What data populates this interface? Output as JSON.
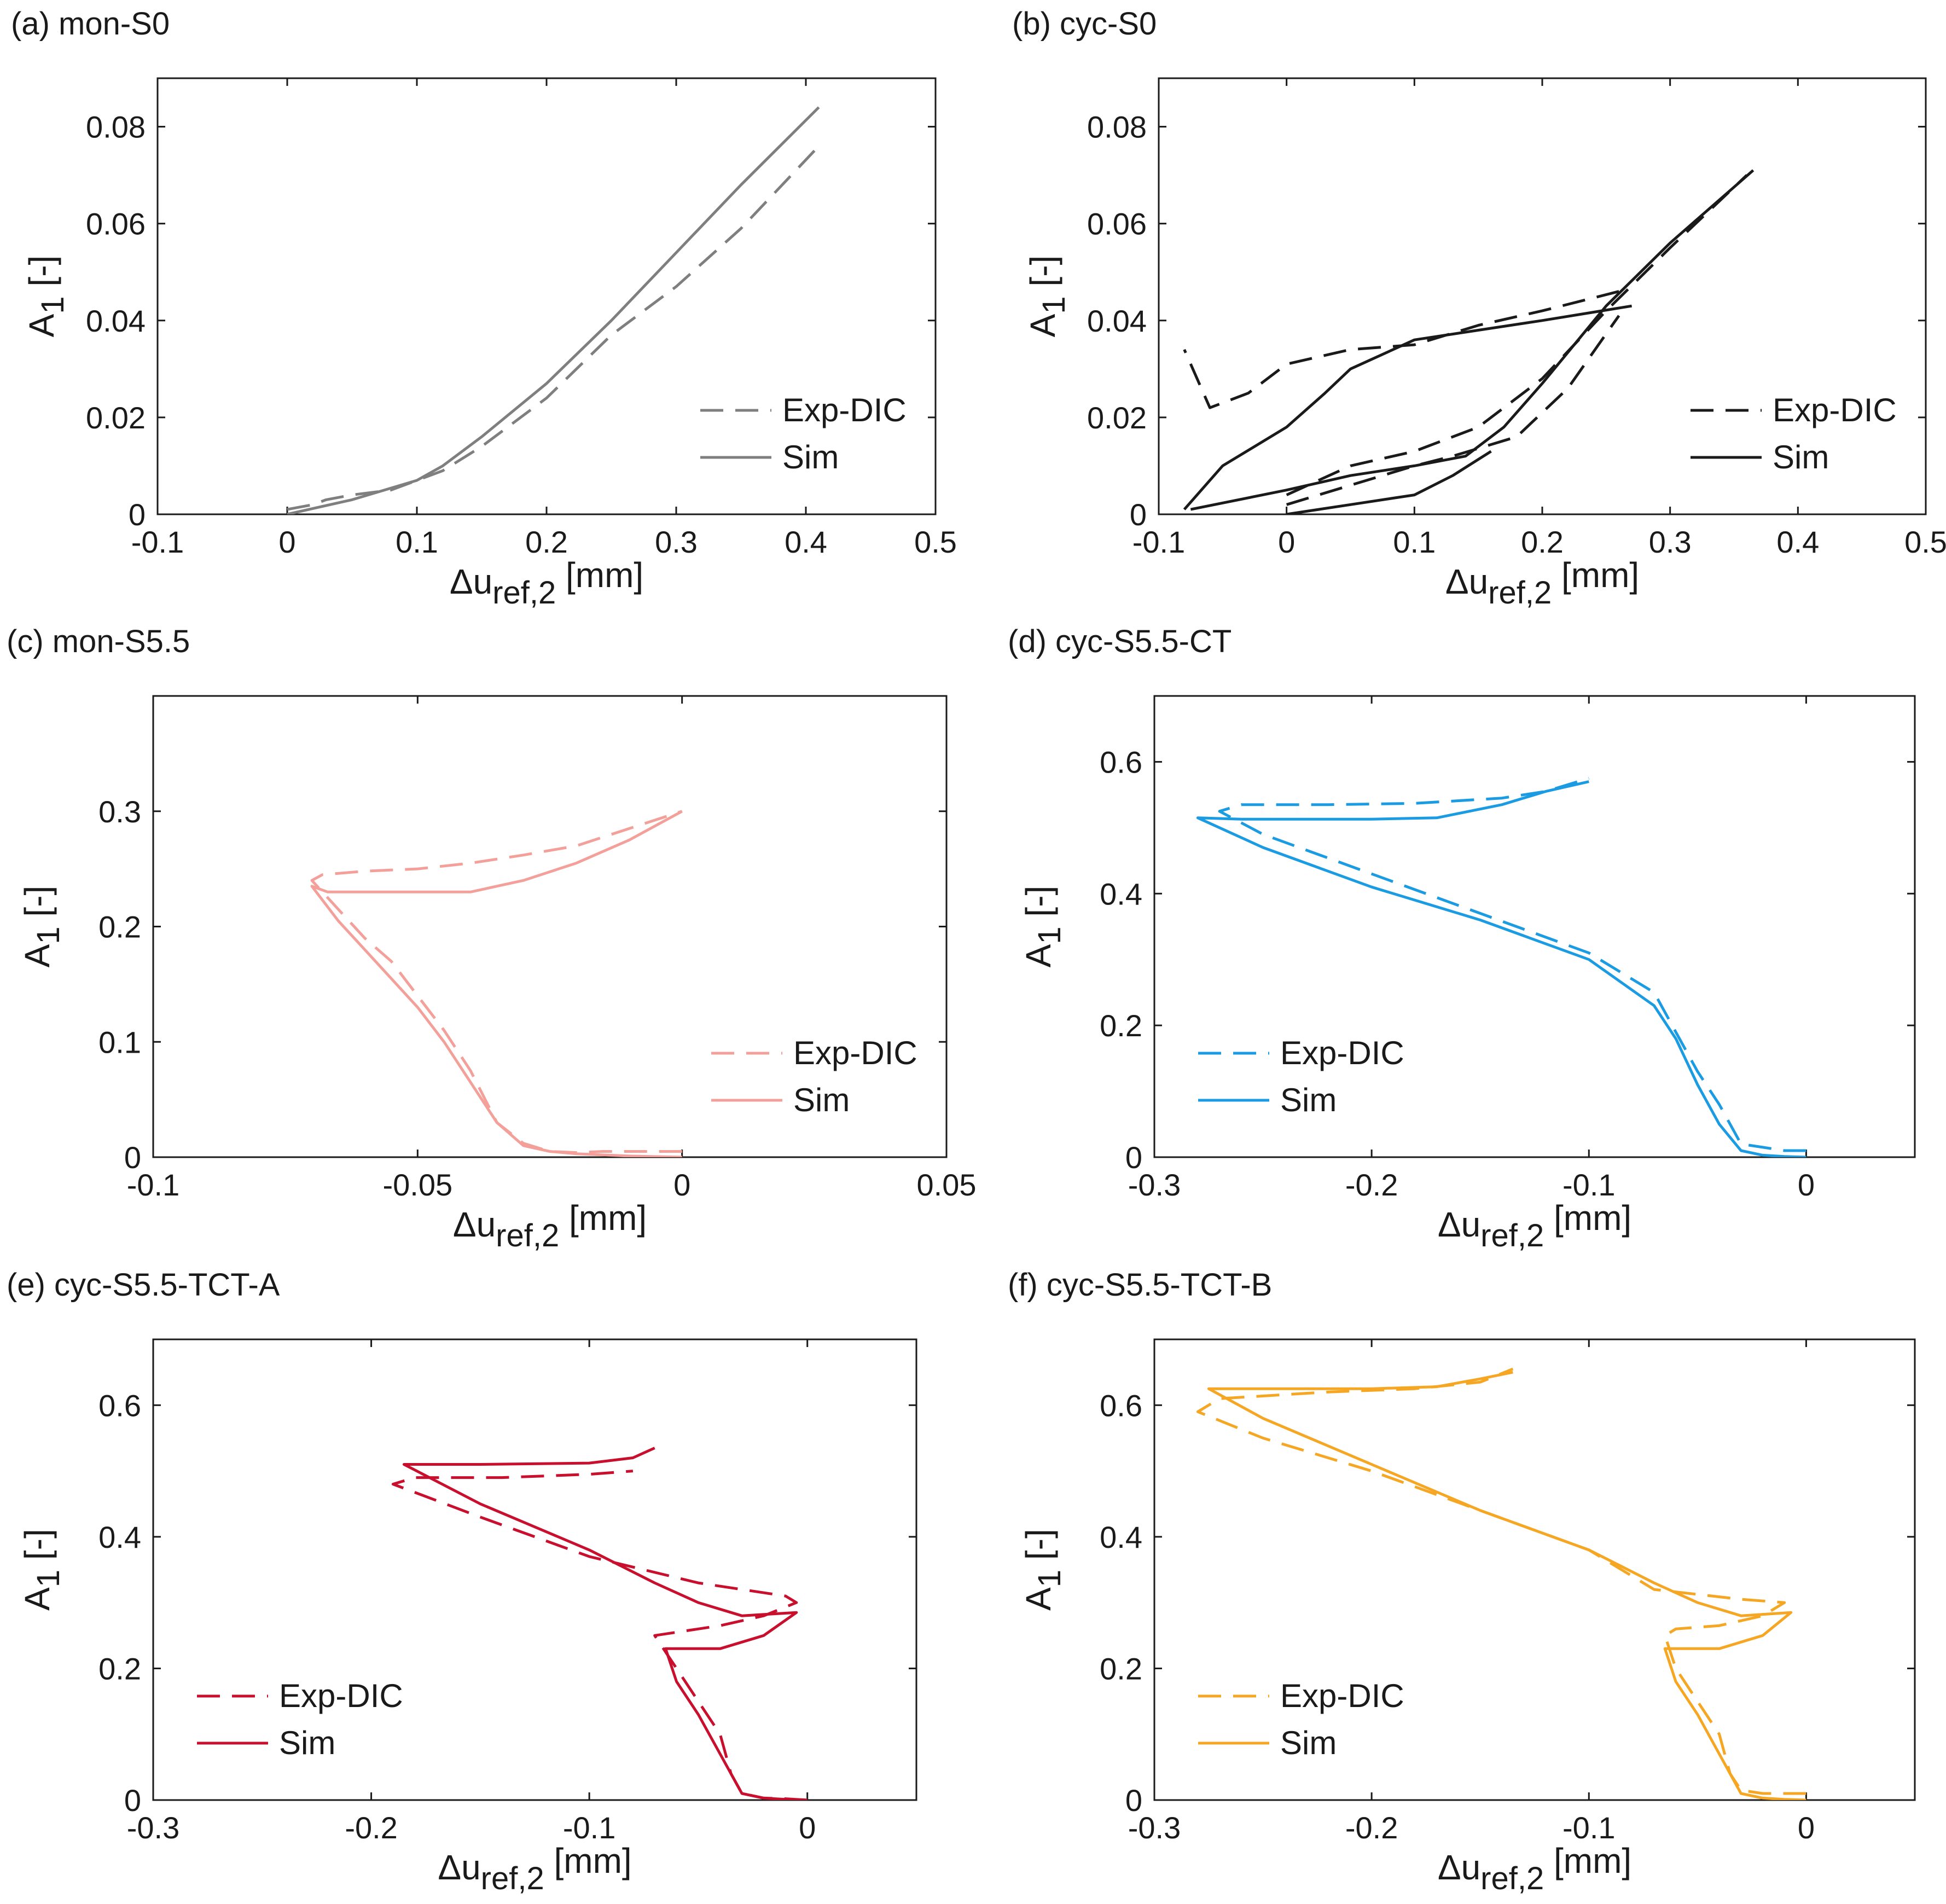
{
  "figure": {
    "x_label_symbol": "Δu",
    "x_label_sub": "ref,2",
    "x_label_unit": " [mm]",
    "y_label_symbol": "A",
    "y_label_sub": "1",
    "y_label_unit": " [-]"
  },
  "chart_data": [
    {
      "id": "a",
      "title": "(a) mon-S0",
      "type": "line",
      "xlim": [
        -0.1,
        0.5
      ],
      "ylim": [
        0,
        0.09
      ],
      "xticks": [
        -0.1,
        0,
        0.1,
        0.2,
        0.3,
        0.4,
        0.5
      ],
      "yticks": [
        0,
        0.02,
        0.04,
        0.06,
        0.08
      ],
      "legend": {
        "position": "right-middle",
        "colors": "#7f7f7f"
      },
      "color": "#7f7f7f",
      "series": [
        {
          "name": "Exp-DIC",
          "style": "dashed",
          "x": [
            0,
            0.02,
            0.03,
            0.05,
            0.08,
            0.1,
            0.12,
            0.15,
            0.2,
            0.25,
            0.3,
            0.35,
            0.41
          ],
          "y": [
            0.001,
            0.002,
            0.003,
            0.004,
            0.005,
            0.007,
            0.009,
            0.014,
            0.024,
            0.037,
            0.047,
            0.059,
            0.076
          ]
        },
        {
          "name": "Sim",
          "style": "solid",
          "x": [
            0,
            0.05,
            0.1,
            0.12,
            0.15,
            0.2,
            0.25,
            0.3,
            0.35,
            0.41
          ],
          "y": [
            0,
            0.003,
            0.007,
            0.01,
            0.016,
            0.027,
            0.04,
            0.054,
            0.068,
            0.084
          ]
        }
      ]
    },
    {
      "id": "b",
      "title": "(b) cyc-S0",
      "type": "line",
      "xlim": [
        -0.1,
        0.5
      ],
      "ylim": [
        0,
        0.09
      ],
      "xticks": [
        -0.1,
        0,
        0.1,
        0.2,
        0.3,
        0.4,
        0.5
      ],
      "yticks": [
        0,
        0.02,
        0.04,
        0.06,
        0.08
      ],
      "legend": {
        "position": "right-middle",
        "colors": "#1a1a1a"
      },
      "color": "#1a1a1a",
      "series": [
        {
          "name": "Exp-DIC",
          "style": "dashed",
          "x": [
            0,
            0.05,
            0.1,
            0.15,
            0.2,
            0.25,
            0.3,
            0.36,
            null,
            0.26,
            0.2,
            0.15,
            0.1,
            0.05,
            0,
            -0.03,
            -0.06,
            -0.08,
            null,
            0.0,
            0.05,
            0.1,
            0.13,
            0.18,
            0.22,
            0.26
          ],
          "y": [
            0.004,
            0.01,
            0.013,
            0.018,
            0.028,
            0.042,
            0.055,
            0.07,
            null,
            0.046,
            0.042,
            0.039,
            0.035,
            0.034,
            0.031,
            0.025,
            0.022,
            0.034,
            null,
            0.002,
            0.006,
            0.01,
            0.012,
            0.016,
            0.026,
            0.041
          ]
        },
        {
          "name": "Sim",
          "style": "solid",
          "x": [
            -0.075,
            0,
            0.05,
            0.1,
            0.14,
            0.17,
            0.2,
            0.25,
            0.3,
            0.365,
            null,
            0.27,
            0.2,
            0.1,
            0.05,
            0.03,
            0.0,
            -0.05,
            -0.08,
            null,
            0.0,
            0.05,
            0.1,
            0.13,
            0.16
          ],
          "y": [
            0.001,
            0.005,
            0.008,
            0.01,
            0.012,
            0.018,
            0.027,
            0.043,
            0.056,
            0.071,
            null,
            0.043,
            0.04,
            0.036,
            0.03,
            0.025,
            0.018,
            0.01,
            0.001,
            null,
            0.0,
            0.002,
            0.004,
            0.008,
            0.013
          ]
        }
      ]
    },
    {
      "id": "c",
      "title": "(c) mon-S5.5",
      "type": "line",
      "xlim": [
        -0.1,
        0.05
      ],
      "ylim": [
        0,
        0.4
      ],
      "xticks": [
        -0.1,
        -0.05,
        0,
        0.05
      ],
      "yticks": [
        0,
        0.1,
        0.2,
        0.3
      ],
      "legend": {
        "position": "right-middle",
        "colors": "#f4a09a"
      },
      "color": "#f4a09a",
      "series": [
        {
          "name": "Exp-DIC",
          "style": "dashed",
          "x": [
            0,
            -0.005,
            -0.01,
            -0.015,
            -0.02,
            -0.025,
            -0.03,
            -0.035,
            -0.04,
            -0.045,
            -0.05,
            -0.055,
            -0.06,
            -0.065,
            -0.07,
            -0.068,
            -0.06,
            -0.05,
            -0.04,
            -0.03,
            -0.02,
            -0.01,
            0
          ],
          "y": [
            0.005,
            0.005,
            0.005,
            0.005,
            0.004,
            0.005,
            0.012,
            0.03,
            0.075,
            0.11,
            0.14,
            0.17,
            0.19,
            0.215,
            0.24,
            0.245,
            0.248,
            0.25,
            0.255,
            0.262,
            0.27,
            0.285,
            0.3
          ]
        },
        {
          "name": "Sim",
          "style": "solid",
          "x": [
            0,
            -0.01,
            -0.02,
            -0.025,
            -0.03,
            -0.035,
            -0.04,
            -0.045,
            -0.05,
            -0.055,
            -0.06,
            -0.065,
            -0.07,
            -0.067,
            -0.05,
            -0.04,
            -0.03,
            -0.02,
            -0.01,
            0
          ],
          "y": [
            0,
            0.001,
            0.003,
            0.005,
            0.01,
            0.03,
            0.065,
            0.1,
            0.13,
            0.155,
            0.18,
            0.205,
            0.235,
            0.23,
            0.23,
            0.23,
            0.24,
            0.255,
            0.275,
            0.3
          ]
        }
      ]
    },
    {
      "id": "d",
      "title": "(d) cyc-S5.5-CT",
      "type": "line",
      "xlim": [
        -0.3,
        0.05
      ],
      "ylim": [
        0,
        0.7
      ],
      "xticks": [
        -0.3,
        -0.2,
        -0.1,
        0
      ],
      "yticks": [
        0,
        0.2,
        0.4,
        0.6
      ],
      "legend": {
        "position": "left-middle",
        "colors": "#1b9ce2"
      },
      "color": "#1b9ce2",
      "series": [
        {
          "name": "Exp-DIC",
          "style": "dashed",
          "x": [
            0,
            -0.005,
            -0.01,
            -0.02,
            -0.03,
            -0.04,
            -0.05,
            -0.06,
            -0.07,
            -0.1,
            -0.15,
            -0.2,
            -0.25,
            -0.27,
            -0.26,
            -0.22,
            -0.18,
            -0.14,
            -0.12,
            -0.1
          ],
          "y": [
            0.01,
            0.01,
            0.01,
            0.015,
            0.02,
            0.08,
            0.13,
            0.19,
            0.25,
            0.31,
            0.37,
            0.43,
            0.49,
            0.525,
            0.535,
            0.535,
            0.537,
            0.545,
            0.555,
            0.575
          ]
        },
        {
          "name": "Sim",
          "style": "solid",
          "x": [
            0,
            -0.01,
            -0.02,
            -0.03,
            -0.04,
            -0.05,
            -0.06,
            -0.07,
            -0.1,
            -0.15,
            -0.2,
            -0.25,
            -0.28,
            -0.26,
            -0.2,
            -0.17,
            -0.14,
            -0.12,
            -0.1
          ],
          "y": [
            0,
            0.001,
            0.003,
            0.01,
            0.05,
            0.11,
            0.18,
            0.23,
            0.3,
            0.36,
            0.41,
            0.47,
            0.515,
            0.513,
            0.513,
            0.515,
            0.535,
            0.555,
            0.57
          ]
        }
      ]
    },
    {
      "id": "e",
      "title": "(e) cyc-S5.5-TCT-A",
      "type": "line",
      "xlim": [
        -0.3,
        0.05
      ],
      "ylim": [
        0,
        0.7
      ],
      "xticks": [
        -0.3,
        -0.2,
        -0.1,
        0
      ],
      "yticks": [
        0,
        0.2,
        0.4,
        0.6
      ],
      "legend": {
        "position": "left-bottom",
        "colors": "#c8102e"
      },
      "color": "#c8102e",
      "series": [
        {
          "name": "Exp-DIC",
          "style": "dashed",
          "x": [
            0,
            -0.01,
            -0.02,
            -0.03,
            -0.035,
            -0.04,
            -0.05,
            -0.06,
            -0.065,
            -0.07,
            -0.06,
            -0.04,
            -0.02,
            -0.005,
            -0.01,
            -0.05,
            -0.1,
            -0.15,
            -0.19,
            -0.18,
            -0.14,
            -0.1,
            -0.08
          ],
          "y": [
            0.0,
            0.002,
            0.003,
            0.01,
            0.04,
            0.1,
            0.15,
            0.2,
            0.225,
            0.25,
            0.255,
            0.265,
            0.28,
            0.3,
            0.31,
            0.33,
            0.37,
            0.43,
            0.48,
            0.49,
            0.49,
            0.495,
            0.5
          ]
        },
        {
          "name": "Sim",
          "style": "solid",
          "x": [
            0,
            -0.01,
            -0.02,
            -0.03,
            -0.04,
            -0.05,
            -0.06,
            -0.065,
            -0.06,
            -0.04,
            -0.02,
            -0.005,
            -0.03,
            -0.05,
            -0.07,
            -0.1,
            -0.15,
            -0.185,
            -0.15,
            -0.1,
            -0.08,
            -0.07
          ],
          "y": [
            0,
            0.001,
            0.003,
            0.01,
            0.07,
            0.13,
            0.18,
            0.23,
            0.23,
            0.23,
            0.25,
            0.285,
            0.28,
            0.3,
            0.33,
            0.38,
            0.45,
            0.51,
            0.51,
            0.512,
            0.52,
            0.535
          ]
        }
      ]
    },
    {
      "id": "f",
      "title": "(f) cyc-S5.5-TCT-B",
      "type": "line",
      "xlim": [
        -0.3,
        0.05
      ],
      "ylim": [
        0,
        0.7
      ],
      "xticks": [
        -0.3,
        -0.2,
        -0.1,
        0
      ],
      "yticks": [
        0,
        0.2,
        0.4,
        0.6
      ],
      "legend": {
        "position": "left-bottom",
        "colors": "#f5a623"
      },
      "color": "#f5a623",
      "series": [
        {
          "name": "Exp-DIC",
          "style": "dashed",
          "x": [
            0,
            -0.01,
            -0.02,
            -0.03,
            -0.035,
            -0.04,
            -0.05,
            -0.06,
            -0.065,
            -0.06,
            -0.04,
            -0.02,
            -0.01,
            -0.03,
            -0.07,
            -0.1,
            -0.15,
            -0.2,
            -0.25,
            -0.28,
            -0.27,
            -0.22,
            -0.18,
            -0.15,
            -0.135
          ],
          "y": [
            0.01,
            0.01,
            0.01,
            0.015,
            0.04,
            0.1,
            0.15,
            0.2,
            0.25,
            0.26,
            0.265,
            0.28,
            0.3,
            0.305,
            0.32,
            0.38,
            0.44,
            0.5,
            0.55,
            0.59,
            0.61,
            0.62,
            0.625,
            0.635,
            0.655
          ]
        },
        {
          "name": "Sim",
          "style": "solid",
          "x": [
            0,
            -0.01,
            -0.02,
            -0.03,
            -0.04,
            -0.05,
            -0.06,
            -0.065,
            -0.06,
            -0.04,
            -0.02,
            -0.007,
            -0.03,
            -0.05,
            -0.07,
            -0.1,
            -0.15,
            -0.2,
            -0.25,
            -0.275,
            -0.25,
            -0.2,
            -0.17,
            -0.15,
            -0.135
          ],
          "y": [
            0,
            0.001,
            0.003,
            0.01,
            0.07,
            0.13,
            0.18,
            0.23,
            0.23,
            0.23,
            0.25,
            0.285,
            0.28,
            0.3,
            0.33,
            0.38,
            0.44,
            0.51,
            0.58,
            0.625,
            0.625,
            0.625,
            0.628,
            0.64,
            0.65
          ]
        }
      ]
    }
  ]
}
